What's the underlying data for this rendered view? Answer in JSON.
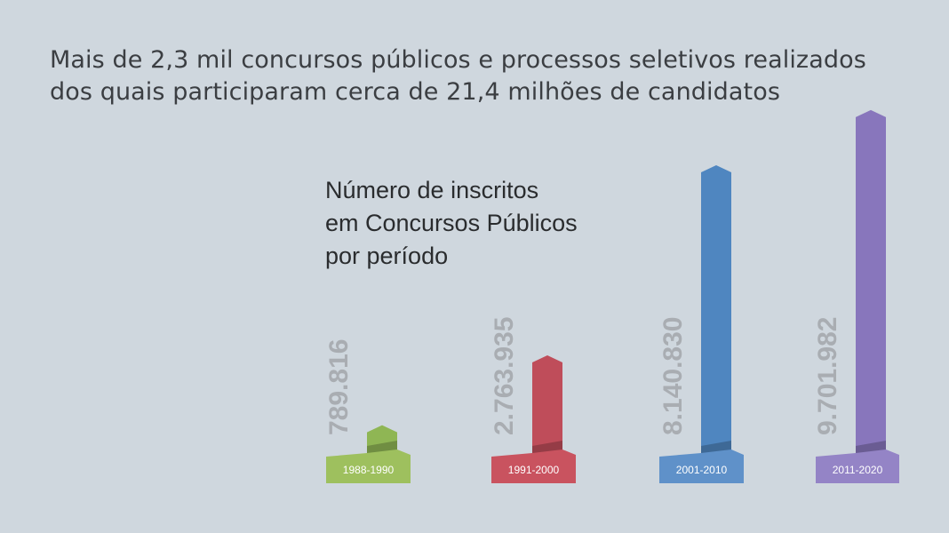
{
  "headline": "Mais de 2,3 mil concursos públicos e processos seletivos realizados dos quais participaram cerca de 21,4 milhões de candidatos",
  "chart_data": {
    "type": "bar",
    "title_lines": [
      "Número de inscritos",
      "em Concursos Públicos",
      "por período"
    ],
    "categories": [
      "1988-1990",
      "1991-2000",
      "2001-2010",
      "2011-2020"
    ],
    "values": [
      789816,
      2763935,
      8140830,
      9701982
    ],
    "value_labels": [
      "789.816",
      "2.763.935",
      "8.140.830",
      "9.701.982"
    ],
    "colors": [
      "#8fb654",
      "#bf4d5a",
      "#4f86c0",
      "#8876bc"
    ],
    "base_colors": [
      "#9ec05e",
      "#c9535f",
      "#5f91c9",
      "#9484c6"
    ],
    "xlabel": "",
    "ylabel": "",
    "ylim": [
      0,
      10000000
    ]
  }
}
